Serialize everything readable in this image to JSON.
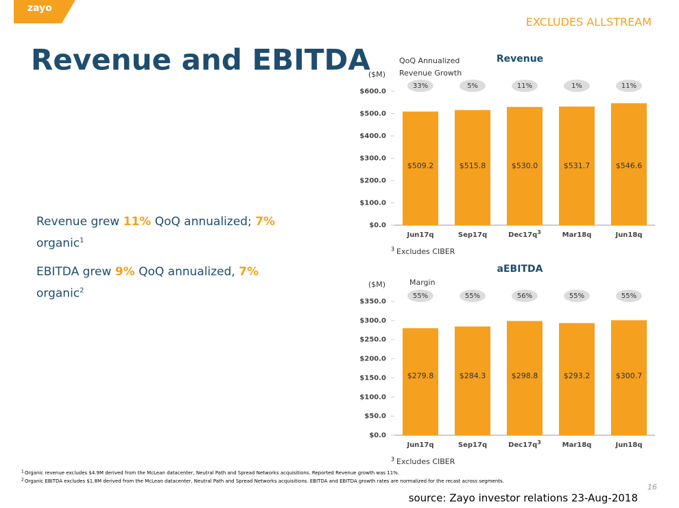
{
  "logo": "zayo",
  "header_note": "EXCLUDES ALLSTREAM",
  "title": "Revenue and EBITDA",
  "bullets": [
    {
      "segments": [
        {
          "text": "Revenue grew "
        },
        {
          "text": "11%",
          "highlight": true
        },
        {
          "text": " QoQ annualized; "
        },
        {
          "text": "7%",
          "highlight": true
        },
        {
          "text": " organic"
        },
        {
          "text": "1",
          "sup": true
        }
      ]
    },
    {
      "segments": [
        {
          "text": "EBITDA grew "
        },
        {
          "text": "9%",
          "highlight": true
        },
        {
          "text": " QoQ annualized, "
        },
        {
          "text": "7%",
          "highlight": true
        },
        {
          "text": " organic"
        },
        {
          "text": "2",
          "sup": true
        }
      ]
    }
  ],
  "chart_data": [
    {
      "type": "bar",
      "title": "Revenue",
      "unit_label": "($M)",
      "color": "#f5a01f",
      "categories": [
        "Jun17q",
        "Sep17q",
        "Dec17q",
        "Mar18q",
        "Jun18q"
      ],
      "category_superscripts": [
        null,
        null,
        "3",
        null,
        null
      ],
      "values": [
        509.2,
        515.8,
        530.0,
        531.7,
        546.6
      ],
      "value_labels": [
        "$509.2",
        "$515.8",
        "$530.0",
        "$531.7",
        "$546.6"
      ],
      "ylim": [
        0,
        600
      ],
      "yticks": [
        {
          "value": 0,
          "label": "$0.0"
        },
        {
          "value": 100,
          "label": "$100.0"
        },
        {
          "value": 200,
          "label": "$200.0"
        },
        {
          "value": 300,
          "label": "$300.0"
        },
        {
          "value": 400,
          "label": "$400.0"
        },
        {
          "value": 500,
          "label": "$500.0"
        },
        {
          "value": 600,
          "label": "$600.0"
        }
      ],
      "annotation": {
        "title_lines": [
          "QoQ Annualized",
          "Revenue Growth"
        ],
        "values": [
          33,
          5,
          11,
          1,
          11
        ],
        "labels": [
          "33%",
          "5%",
          "11%",
          "1%",
          "11%"
        ]
      },
      "note": {
        "marker": "3",
        "text": "Excludes CIBER"
      }
    },
    {
      "type": "bar",
      "title": "aEBITDA",
      "unit_label": "($M)",
      "color": "#f5a01f",
      "categories": [
        "Jun17q",
        "Sep17q",
        "Dec17q",
        "Mar18q",
        "Jun18q"
      ],
      "category_superscripts": [
        null,
        null,
        "3",
        null,
        null
      ],
      "values": [
        279.8,
        284.3,
        298.8,
        293.2,
        300.7
      ],
      "value_labels": [
        "$279.8",
        "$284.3",
        "$298.8",
        "$293.2",
        "$300.7"
      ],
      "ylim": [
        0,
        350
      ],
      "yticks": [
        {
          "value": 0,
          "label": "$0.0"
        },
        {
          "value": 50,
          "label": "$50.0"
        },
        {
          "value": 100,
          "label": "$100.0"
        },
        {
          "value": 150,
          "label": "$150.0"
        },
        {
          "value": 200,
          "label": "$200.0"
        },
        {
          "value": 250,
          "label": "$250.0"
        },
        {
          "value": 300,
          "label": "$300.0"
        },
        {
          "value": 350,
          "label": "$350.0"
        }
      ],
      "annotation": {
        "title_lines": [
          "Margin"
        ],
        "values": [
          55,
          55,
          56,
          55,
          55
        ],
        "labels": [
          "55%",
          "55%",
          "56%",
          "55%",
          "55%"
        ]
      },
      "note": {
        "marker": "3",
        "text": "Excludes CIBER"
      }
    }
  ],
  "footnotes": [
    {
      "marker": "1",
      "text": "Organic revenue excludes $4.9M derived from the McLean datacenter,  Neutral Path and Spread Networks acquisitions.  Reported Revenue growth was 11%."
    },
    {
      "marker": "2",
      "text": "Organic EBITDA excludes $1.8M derived from the McLean datacenter,  Neutral Path and Spread Networks acquisitions. EBITDA and EBITDA growth rates are normalized for the recast across segments."
    }
  ],
  "page_number": "16",
  "source": "source: Zayo investor relations 23-Aug-2018"
}
